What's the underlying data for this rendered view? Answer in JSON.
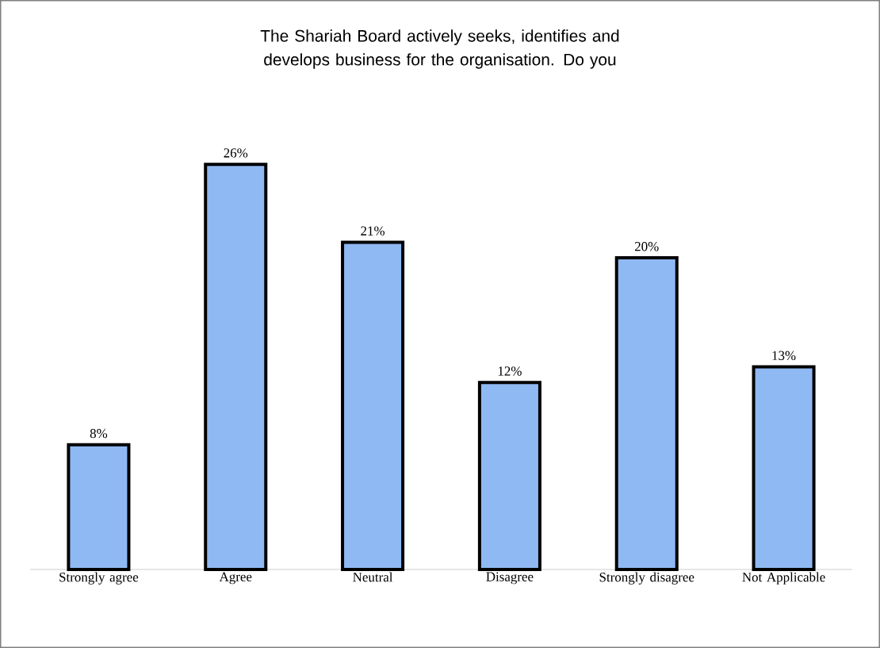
{
  "chart_data": {
    "type": "bar",
    "title": "The Shariah Board actively seeks, identifies and develops business for the organisation.  Do you",
    "categories": [
      "Strongly agree",
      "Agree",
      "Neutral",
      "Disagree",
      "Strongly disagree",
      "Not Applicable"
    ],
    "values": [
      8,
      26,
      21,
      12,
      20,
      13
    ],
    "value_labels": [
      "8%",
      "26%",
      "21%",
      "12%",
      "20%",
      "13%"
    ],
    "color": "#8fb9f3"
  }
}
